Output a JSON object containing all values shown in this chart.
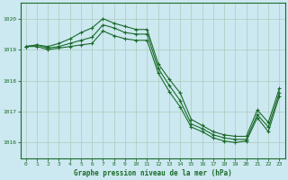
{
  "title": "Graphe pression niveau de la mer (hPa)",
  "bg_color": "#cce8f0",
  "grid_color": "#aaccbb",
  "line_color": "#1a6b2a",
  "xlim": [
    -0.5,
    23.5
  ],
  "ylim": [
    1015.5,
    1020.5
  ],
  "yticks": [
    1016,
    1017,
    1018,
    1019,
    1020
  ],
  "xticks": [
    0,
    1,
    2,
    3,
    4,
    5,
    6,
    7,
    8,
    9,
    10,
    11,
    12,
    13,
    14,
    15,
    16,
    17,
    18,
    19,
    20,
    21,
    22,
    23
  ],
  "series": [
    {
      "x": [
        0,
        1,
        2,
        3,
        4,
        5,
        6,
        7,
        8,
        9,
        10,
        11,
        12,
        13,
        14,
        15,
        16,
        17,
        18,
        19,
        20,
        21,
        22,
        23
      ],
      "y": [
        1019.1,
        1019.15,
        1019.1,
        1019.2,
        1019.35,
        1019.55,
        1019.7,
        1020.0,
        1019.85,
        1019.75,
        1019.65,
        1019.65,
        1018.55,
        1018.05,
        1017.6,
        1016.75,
        1016.55,
        1016.35,
        1016.25,
        1016.2,
        1016.2,
        1017.05,
        1016.65,
        1017.75
      ]
    },
    {
      "x": [
        0,
        1,
        2,
        3,
        4,
        5,
        6,
        7,
        8,
        9,
        10,
        11,
        12,
        13,
        14,
        15,
        16,
        17,
        18,
        19,
        20,
        21,
        22,
        23
      ],
      "y": [
        1019.1,
        1019.15,
        1019.05,
        1019.1,
        1019.2,
        1019.3,
        1019.4,
        1019.8,
        1019.7,
        1019.55,
        1019.5,
        1019.5,
        1018.4,
        1017.85,
        1017.35,
        1016.6,
        1016.45,
        1016.25,
        1016.15,
        1016.1,
        1016.1,
        1016.9,
        1016.5,
        1017.6
      ]
    },
    {
      "x": [
        0,
        1,
        2,
        3,
        4,
        5,
        6,
        7,
        8,
        9,
        10,
        11,
        12,
        13,
        14,
        15,
        16,
        17,
        18,
        19,
        20,
        21,
        22,
        23
      ],
      "y": [
        1019.1,
        1019.1,
        1019.0,
        1019.05,
        1019.1,
        1019.15,
        1019.2,
        1019.6,
        1019.45,
        1019.35,
        1019.3,
        1019.3,
        1018.25,
        1017.65,
        1017.15,
        1016.5,
        1016.35,
        1016.15,
        1016.05,
        1016.0,
        1016.05,
        1016.8,
        1016.35,
        1017.5
      ]
    }
  ]
}
